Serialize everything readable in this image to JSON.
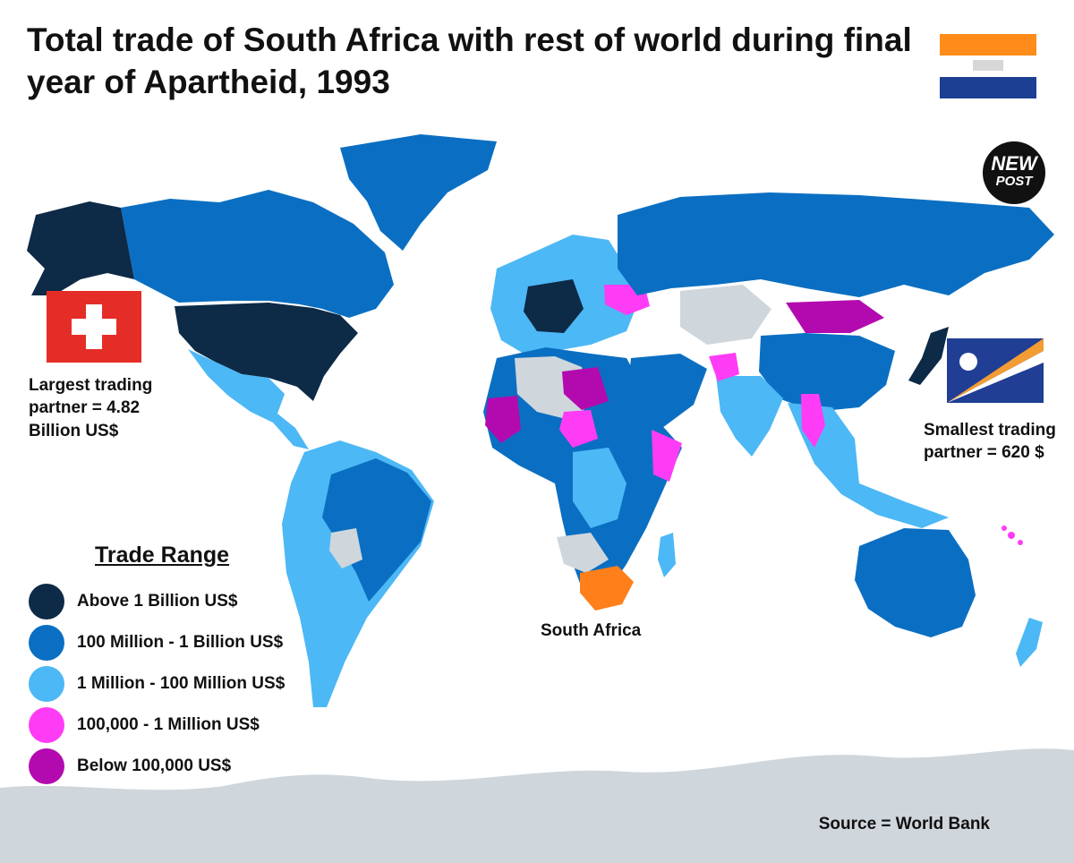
{
  "title": "Total trade of South Africa with rest of world during final year of Apartheid, 1993",
  "badge": {
    "line1": "NEW",
    "line2": "POST"
  },
  "largest": {
    "text": "Largest trading partner = 4.82 Billion US$",
    "flag": "switzerland-flag"
  },
  "smallest": {
    "text": "Smallest trading partner = 620 $",
    "flag": "marshall-islands-flag"
  },
  "focus_country": "South Africa",
  "source": "Source = World Bank",
  "legend": {
    "title": "Trade Range",
    "items": [
      {
        "label": "Above 1 Billion US$",
        "color": "#0d2a47"
      },
      {
        "label": "100 Million - 1 Billion US$",
        "color": "#0a6fc2"
      },
      {
        "label": "1 Million - 100 Million US$",
        "color": "#4cb8f5"
      },
      {
        "label": "100,000 - 1 Million US$",
        "color": "#ff3cf5"
      },
      {
        "label": "Below 100,000 US$",
        "color": "#b30ab0"
      }
    ]
  },
  "colors": {
    "ocean": "#ffffff",
    "no_data": "#cfd6dc",
    "south_africa": "#ff7f1a"
  }
}
